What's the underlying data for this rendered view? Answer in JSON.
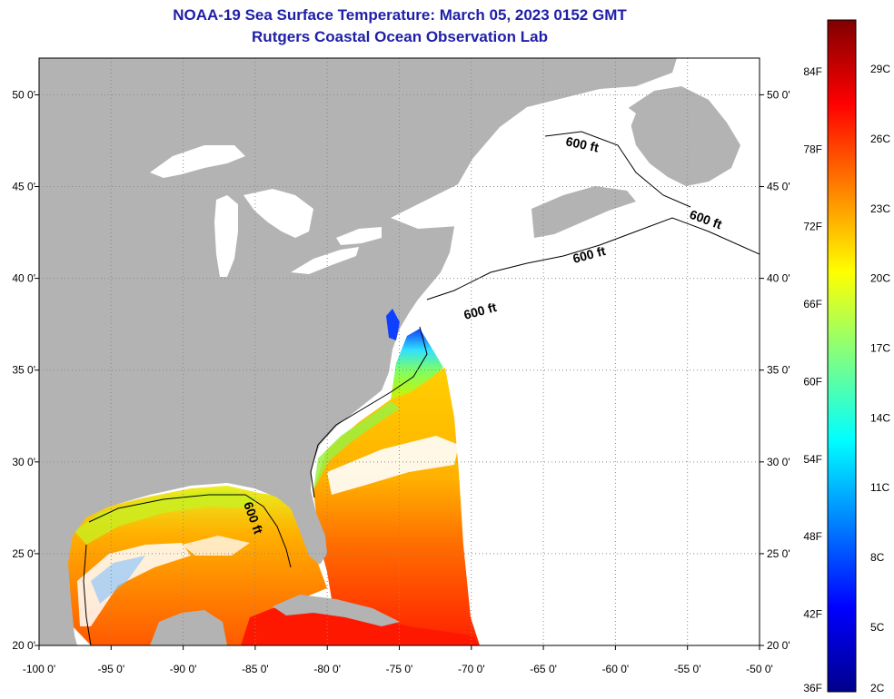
{
  "title": "NOAA-19 Sea Surface Temperature:  March 05, 2023 0152 GMT",
  "subtitle": "Rutgers Coastal Ocean Observation Lab",
  "map": {
    "lon_range": [
      -100,
      -50
    ],
    "lat_range": [
      20,
      52
    ],
    "x_ticks": [
      {
        "lon": -100,
        "label": "-100 0'"
      },
      {
        "lon": -95,
        "label": "-95 0'"
      },
      {
        "lon": -90,
        "label": "-90 0'"
      },
      {
        "lon": -85,
        "label": "-85 0'"
      },
      {
        "lon": -80,
        "label": "-80 0'"
      },
      {
        "lon": -75,
        "label": "-75 0'"
      },
      {
        "lon": -70,
        "label": "-70 0'"
      },
      {
        "lon": -65,
        "label": "-65 0'"
      },
      {
        "lon": -60,
        "label": "-60 0'"
      },
      {
        "lon": -55,
        "label": "-55 0'"
      },
      {
        "lon": -50,
        "label": "-50 0'"
      }
    ],
    "y_ticks": [
      {
        "lat": 20,
        "label": "20 0'"
      },
      {
        "lat": 25,
        "label": "25 0'"
      },
      {
        "lat": 30,
        "label": "30 0'"
      },
      {
        "lat": 35,
        "label": "35 0'"
      },
      {
        "lat": 40,
        "label": "40 0'"
      },
      {
        "lat": 45,
        "label": "45 0'"
      },
      {
        "lat": 50,
        "label": "50 0'"
      }
    ],
    "contour_label": "600 ft",
    "colors": {
      "land": "#b3b3b3",
      "no_data": "#ffffff",
      "grid": "#8a8a8a"
    }
  },
  "colorbar": {
    "colors": [
      "#00008c",
      "#0000ff",
      "#0080ff",
      "#00ffff",
      "#80ff80",
      "#ffff00",
      "#ff8000",
      "#ff0000",
      "#800000"
    ],
    "f_labels": [
      {
        "value": 36,
        "label": "36F"
      },
      {
        "value": 42,
        "label": "42F"
      },
      {
        "value": 48,
        "label": "48F"
      },
      {
        "value": 54,
        "label": "54F"
      },
      {
        "value": 60,
        "label": "60F"
      },
      {
        "value": 66,
        "label": "66F"
      },
      {
        "value": 72,
        "label": "72F"
      },
      {
        "value": 78,
        "label": "78F"
      },
      {
        "value": 84,
        "label": "84F"
      }
    ],
    "c_labels": [
      {
        "value": 2,
        "label": "2C"
      },
      {
        "value": 5,
        "label": "5C"
      },
      {
        "value": 8,
        "label": "8C"
      },
      {
        "value": 11,
        "label": "11C"
      },
      {
        "value": 14,
        "label": "14C"
      },
      {
        "value": 17,
        "label": "17C"
      },
      {
        "value": 20,
        "label": "20C"
      },
      {
        "value": 23,
        "label": "23C"
      },
      {
        "value": 26,
        "label": "26C"
      },
      {
        "value": 29,
        "label": "29C"
      }
    ]
  }
}
